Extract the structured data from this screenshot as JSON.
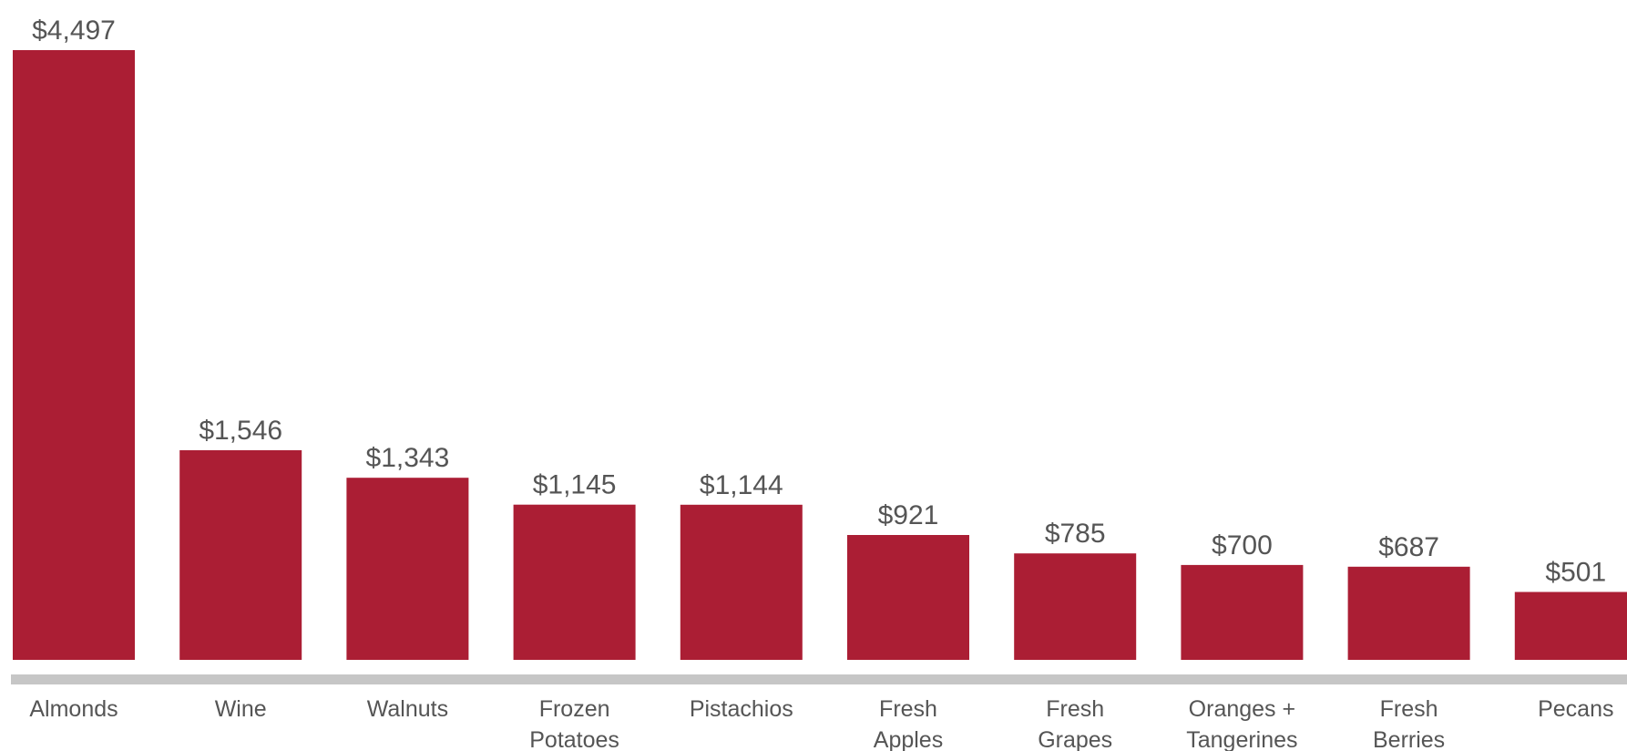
{
  "chart_data": {
    "type": "bar",
    "title": "",
    "xlabel": "",
    "ylabel": "",
    "ylim": [
      0,
      4500
    ],
    "grid": false,
    "legend": "none",
    "bar_color": "#ab1e34",
    "baseline_color": "#c6c6c6",
    "categories": [
      [
        "Almonds"
      ],
      [
        "Wine"
      ],
      [
        "Walnuts"
      ],
      [
        "Frozen",
        "Potatoes"
      ],
      [
        "Pistachios"
      ],
      [
        "Fresh",
        "Apples"
      ],
      [
        "Fresh",
        "Grapes"
      ],
      [
        "Oranges +",
        "Tangerines"
      ],
      [
        "Fresh",
        "Berries"
      ],
      [
        "Pecans"
      ]
    ],
    "values": [
      4497,
      1546,
      1343,
      1145,
      1144,
      921,
      785,
      700,
      687,
      501
    ],
    "value_labels": [
      "$4,497",
      "$1,546",
      "$1,343",
      "$1,145",
      "$1,144",
      "$921",
      "$785",
      "$700",
      "$687",
      "$501"
    ]
  }
}
